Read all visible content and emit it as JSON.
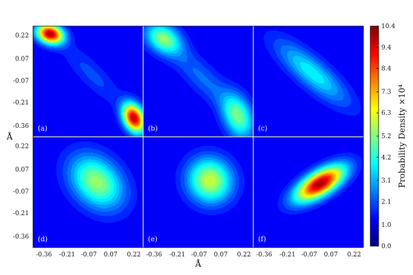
{
  "chart_data": {
    "type": "heatmap",
    "layout": "2x3 grid",
    "xlabel": "Å",
    "ylabel": "Å",
    "x_ticks": [
      "-0.36",
      "-0.21",
      "-0.07",
      "0.07",
      "0.22"
    ],
    "y_ticks": [
      "0.22",
      "0.07",
      "-0.07",
      "-0.21",
      "-0.36"
    ],
    "axis_range": [
      -0.43,
      0.28
    ],
    "colorbar": {
      "label": "Probability Density ×10⁴",
      "ticks": [
        "0.0",
        "1.0",
        "2.1",
        "3.1",
        "4.2",
        "5.2",
        "6.3",
        "7.3",
        "8.4",
        "9.4",
        "10.4"
      ],
      "min": 0.0,
      "max": 10.4,
      "colormap": "jet"
    },
    "panels": [
      {
        "label": "(a)",
        "peaks": [
          {
            "x": -0.32,
            "y": 0.23,
            "sx": 0.06,
            "sy": 0.045,
            "rho": -0.2,
            "amp": 10.0
          },
          {
            "x": 0.22,
            "y": -0.31,
            "sx": 0.05,
            "sy": 0.065,
            "rho": -0.3,
            "amp": 9.8
          },
          {
            "x": -0.05,
            "y": -0.03,
            "sx": 0.14,
            "sy": 0.14,
            "rho": -0.85,
            "amp": 1.1
          }
        ]
      },
      {
        "label": "(b)",
        "peaks": [
          {
            "x": -0.3,
            "y": 0.2,
            "sx": 0.08,
            "sy": 0.07,
            "rho": -0.3,
            "amp": 4.6
          },
          {
            "x": 0.18,
            "y": -0.3,
            "sx": 0.07,
            "sy": 0.1,
            "rho": -0.3,
            "amp": 4.3
          },
          {
            "x": -0.05,
            "y": -0.05,
            "sx": 0.16,
            "sy": 0.16,
            "rho": -0.85,
            "amp": 1.5
          }
        ]
      },
      {
        "label": "(c)",
        "peaks": [
          {
            "x": -0.05,
            "y": -0.02,
            "sx": 0.16,
            "sy": 0.14,
            "rho": -0.82,
            "amp": 3.2
          }
        ]
      },
      {
        "label": "(d)",
        "peaks": [
          {
            "x": -0.02,
            "y": -0.01,
            "sx": 0.12,
            "sy": 0.12,
            "rho": -0.3,
            "amp": 5.0
          }
        ]
      },
      {
        "label": "(e)",
        "peaks": [
          {
            "x": 0.0,
            "y": 0.0,
            "sx": 0.1,
            "sy": 0.1,
            "rho": -0.05,
            "amp": 5.6
          }
        ]
      },
      {
        "label": "(f)",
        "peaks": [
          {
            "x": 0.0,
            "y": -0.02,
            "sx": 0.11,
            "sy": 0.08,
            "rho": 0.65,
            "amp": 10.2
          }
        ]
      }
    ]
  }
}
